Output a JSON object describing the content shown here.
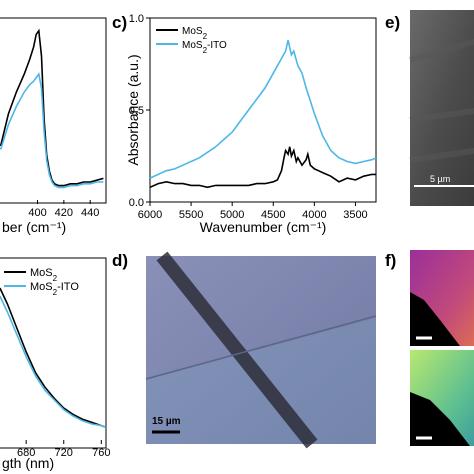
{
  "colors": {
    "mos2": "#000000",
    "mos2_ito": "#4db8e6"
  },
  "panels": {
    "c": {
      "label": "c)"
    },
    "d": {
      "label": "d)",
      "scalebar": "15 µm"
    },
    "e": {
      "label": "e)",
      "scalebar": "5 µm"
    },
    "f": {
      "label": "f)"
    }
  },
  "chart_data": [
    {
      "type": "line",
      "panel": "a (partially visible)",
      "xlabel": "ber (cm⁻¹)",
      "ylabel": "",
      "xlim": [
        370,
        452
      ],
      "xticks": [
        "400",
        "420",
        "440"
      ],
      "legend": [],
      "series": [
        {
          "name": "",
          "color": "#000000",
          "x": [
            372,
            378,
            384,
            390,
            394,
            397,
            399,
            401,
            403,
            405,
            407,
            409,
            411,
            413,
            416,
            420,
            425,
            430,
            435,
            440,
            445,
            450
          ],
          "y": [
            0.3,
            0.48,
            0.6,
            0.7,
            0.78,
            0.85,
            0.92,
            0.94,
            0.8,
            0.45,
            0.25,
            0.16,
            0.11,
            0.09,
            0.08,
            0.08,
            0.09,
            0.09,
            0.1,
            0.1,
            0.11,
            0.12
          ]
        },
        {
          "name": "",
          "color": "#4db8e6",
          "x": [
            372,
            378,
            384,
            390,
            394,
            397,
            399,
            401,
            403,
            405,
            407,
            409,
            411,
            413,
            416,
            420,
            425,
            430,
            435,
            440,
            445,
            450
          ],
          "y": [
            0.28,
            0.42,
            0.52,
            0.6,
            0.64,
            0.66,
            0.68,
            0.7,
            0.62,
            0.38,
            0.22,
            0.14,
            0.1,
            0.08,
            0.07,
            0.07,
            0.08,
            0.08,
            0.09,
            0.09,
            0.1,
            0.1
          ]
        }
      ]
    },
    {
      "type": "line",
      "panel": "c",
      "title": "",
      "xlabel": "Wavenumber (cm⁻¹)",
      "ylabel": "Absorbance (a.u.)",
      "xlim": [
        6000,
        3250
      ],
      "ylim": [
        0.0,
        1.0
      ],
      "xticks": [
        "6000",
        "5500",
        "5000",
        "4500",
        "4000",
        "3500"
      ],
      "yticks": [
        "0.0",
        "0.5",
        "1.0"
      ],
      "legend_position": "top-left",
      "series": [
        {
          "name": "MoS2",
          "color": "#000000",
          "x": [
            6000,
            5900,
            5800,
            5700,
            5600,
            5500,
            5400,
            5300,
            5200,
            5100,
            5000,
            4900,
            4800,
            4700,
            4600,
            4500,
            4450,
            4400,
            4370,
            4350,
            4320,
            4300,
            4280,
            4250,
            4220,
            4200,
            4150,
            4100,
            4080,
            4050,
            4000,
            3950,
            3900,
            3800,
            3700,
            3600,
            3500,
            3400,
            3300,
            3250
          ],
          "y": [
            0.08,
            0.1,
            0.11,
            0.1,
            0.1,
            0.09,
            0.09,
            0.08,
            0.09,
            0.09,
            0.09,
            0.09,
            0.09,
            0.1,
            0.1,
            0.11,
            0.12,
            0.17,
            0.24,
            0.28,
            0.26,
            0.3,
            0.25,
            0.28,
            0.22,
            0.24,
            0.2,
            0.23,
            0.26,
            0.2,
            0.18,
            0.17,
            0.16,
            0.14,
            0.11,
            0.13,
            0.12,
            0.14,
            0.15,
            0.15
          ]
        },
        {
          "name": "MoS2-ITO",
          "color": "#4db8e6",
          "x": [
            6000,
            5900,
            5800,
            5700,
            5600,
            5500,
            5400,
            5300,
            5200,
            5100,
            5000,
            4900,
            4800,
            4700,
            4600,
            4500,
            4450,
            4400,
            4350,
            4320,
            4300,
            4280,
            4250,
            4200,
            4150,
            4100,
            4050,
            4000,
            3950,
            3900,
            3800,
            3700,
            3600,
            3500,
            3400,
            3300,
            3250
          ],
          "y": [
            0.13,
            0.15,
            0.17,
            0.18,
            0.2,
            0.22,
            0.24,
            0.27,
            0.3,
            0.34,
            0.38,
            0.44,
            0.5,
            0.56,
            0.62,
            0.7,
            0.74,
            0.78,
            0.82,
            0.88,
            0.84,
            0.8,
            0.82,
            0.74,
            0.7,
            0.62,
            0.55,
            0.48,
            0.42,
            0.36,
            0.28,
            0.24,
            0.22,
            0.21,
            0.22,
            0.23,
            0.24
          ]
        }
      ]
    },
    {
      "type": "line",
      "panel": "b (partially visible)",
      "xlabel": "gth (nm)",
      "ylabel": "",
      "xlim": [
        650,
        765
      ],
      "xticks": [
        "680",
        "720",
        "760"
      ],
      "legend_position": "top-left",
      "series": [
        {
          "name": "MoS2",
          "color": "#000000",
          "x": [
            652,
            660,
            670,
            680,
            690,
            700,
            710,
            720,
            730,
            740,
            750,
            760,
            765
          ],
          "y": [
            0.95,
            0.85,
            0.7,
            0.55,
            0.42,
            0.33,
            0.26,
            0.2,
            0.16,
            0.13,
            0.11,
            0.09,
            0.08
          ]
        },
        {
          "name": "MoS2-ITO",
          "color": "#4db8e6",
          "x": [
            652,
            660,
            670,
            680,
            690,
            700,
            710,
            720,
            730,
            740,
            750,
            760,
            765
          ],
          "y": [
            0.9,
            0.8,
            0.66,
            0.52,
            0.4,
            0.31,
            0.25,
            0.19,
            0.15,
            0.12,
            0.1,
            0.09,
            0.08
          ]
        }
      ]
    }
  ]
}
